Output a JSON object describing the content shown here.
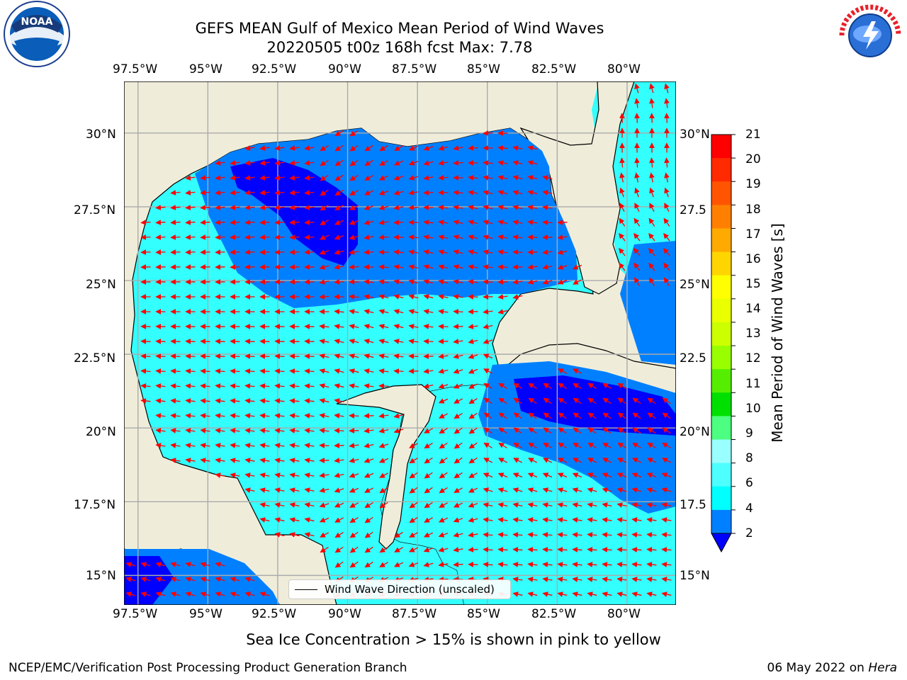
{
  "title": {
    "line1": "GEFS MEAN Gulf of Mexico Mean Period of Wind Waves",
    "line2": "20220505 t00z 168h fcst   Max: 7.78"
  },
  "map": {
    "lon_ticks": [
      "97.5°W",
      "95°W",
      "92.5°W",
      "90°W",
      "87.5°W",
      "85°W",
      "82.5°W",
      "80°W"
    ],
    "lat_ticks_left": [
      "30°N",
      "27.5°N",
      "25°N",
      "22.5°N",
      "20°N",
      "17.5°N",
      "15°N"
    ],
    "lat_ticks_right": [
      "30°N",
      "27.5",
      "25°N",
      "22.5",
      "20°N",
      "17.5",
      "15°N"
    ],
    "lon_range": [
      -98,
      -78.25
    ],
    "lat_range": [
      14,
      31.75
    ],
    "land_color": "#efedda",
    "ocean_color": "#33ffff",
    "arrow_color": "#ff0000",
    "legend_label": "Wind Wave Direction (unscaled)"
  },
  "colorbar": {
    "label": "Mean Period of Wind Waves [s]",
    "ticks": [
      "21",
      "20",
      "19",
      "18",
      "17",
      "16",
      "15",
      "14",
      "13",
      "12",
      "11",
      "10",
      "9",
      "8",
      "6",
      "4",
      "2"
    ],
    "colors": [
      "#ff0000",
      "#ff2a00",
      "#ff5500",
      "#ff8000",
      "#ffaa00",
      "#ffd500",
      "#ffff00",
      "#eaff00",
      "#ccff00",
      "#99ff00",
      "#55ee00",
      "#00e000",
      "#4dff80",
      "#99ffff",
      "#4dffff",
      "#00ffff",
      "#0080ff"
    ],
    "extend_color": "#0000ff"
  },
  "footer": {
    "subtitle": "Sea Ice Concentration > 15% is shown in pink to yellow",
    "credit": "NCEP/EMC/Verification Post Processing Product Generation Branch",
    "date_text": "06 May 2022 on ",
    "machine": "Hera"
  },
  "logos": {
    "left": "NOAA",
    "right": "NATIONAL WEATHER SERVICE"
  }
}
